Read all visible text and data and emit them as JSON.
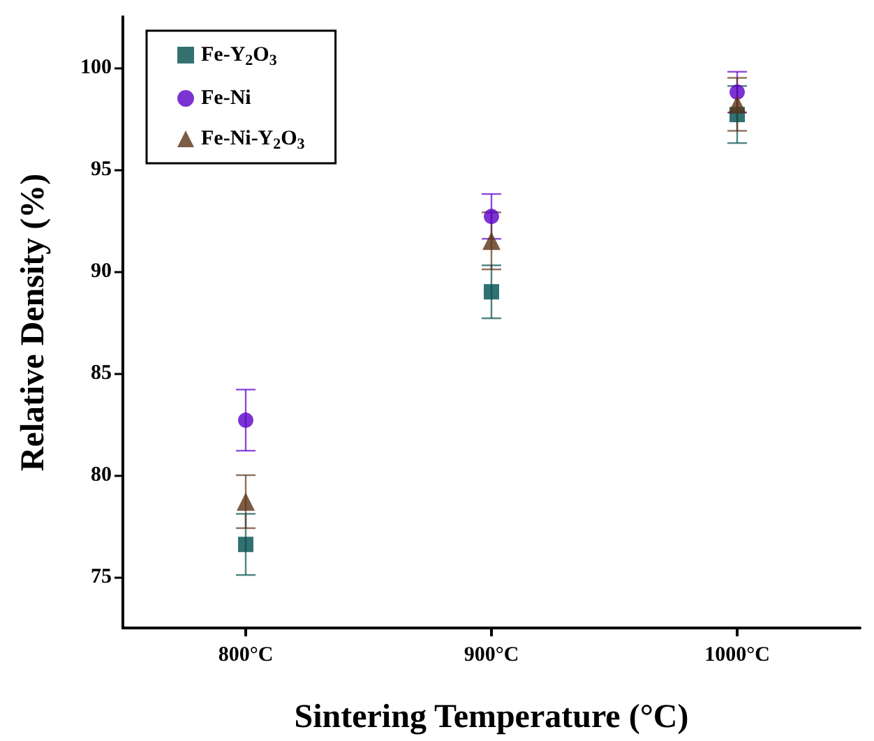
{
  "chart_data": {
    "type": "scatter",
    "xlabel": "Sintering Temperature (°C)",
    "ylabel": "Relative Density (%)",
    "categories": [
      "800°C",
      "900°C",
      "1000°C"
    ],
    "series": [
      {
        "name": "Fe-Y$_{2}$O$_{3}$",
        "color": "#004d4d",
        "marker": "square",
        "values": [
          76.6,
          89.0,
          97.7
        ],
        "errors": [
          1.5,
          1.3,
          1.4
        ]
      },
      {
        "name": "Fe-Ni",
        "color": "#5b00c8",
        "marker": "circle",
        "values": [
          82.7,
          92.7,
          98.8
        ],
        "errors": [
          1.5,
          1.1,
          1.0
        ]
      },
      {
        "name": "Fe-Ni-Y$_{2}$O$_{3}$",
        "color": "#5c3317",
        "marker": "triangle",
        "values": [
          78.7,
          91.5,
          98.2
        ],
        "errors": [
          1.3,
          1.4,
          1.3
        ]
      }
    ],
    "ylim": [
      72.5,
      102.5
    ],
    "yticks": [
      75,
      80,
      85,
      90,
      95,
      100
    ],
    "grid": false,
    "legend": "top left"
  }
}
